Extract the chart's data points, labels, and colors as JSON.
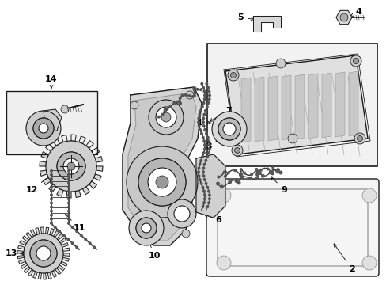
{
  "bg_color": "#ffffff",
  "lc": "#1a1a1a",
  "gray_light": "#e8e8e8",
  "gray_mid": "#cccccc",
  "gray_dark": "#aaaaaa",
  "label_fs": 8
}
